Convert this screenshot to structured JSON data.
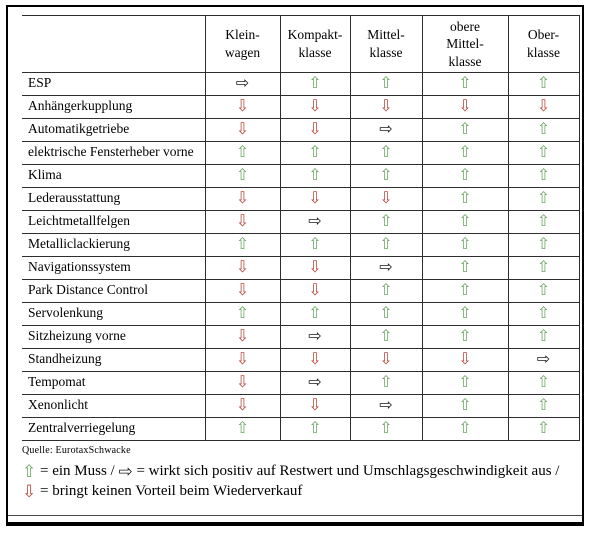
{
  "source": "Quelle: EurotaxSchwacke",
  "arrows": {
    "up": "⇧",
    "down": "⇩",
    "right": "⇨"
  },
  "colors": {
    "up": "#6fa968",
    "down": "#bc4a40",
    "right": "#1a1a1a"
  },
  "legend": {
    "up": "= ein Muss / ",
    "right": "= wirkt sich positiv auf Restwert und Umschlagsgeschwindigkeit aus /",
    "down": "= bringt keinen Vorteil beim Wiederverkauf"
  },
  "table": {
    "columns": [
      "Klein-\nwagen",
      "Kompakt-\nklasse",
      "Mittel-\nklasse",
      "obere\nMittel-\nklasse",
      "Ober-\nklasse"
    ],
    "rows": [
      {
        "label": "ESP",
        "values": [
          "right",
          "up",
          "up",
          "up",
          "up"
        ]
      },
      {
        "label": "Anhängerkupplung",
        "values": [
          "down",
          "down",
          "down",
          "down",
          "down"
        ]
      },
      {
        "label": "Automatikgetriebe",
        "values": [
          "down",
          "down",
          "right",
          "up",
          "up"
        ]
      },
      {
        "label": "elektrische Fensterheber vorne",
        "values": [
          "up",
          "up",
          "up",
          "up",
          "up"
        ]
      },
      {
        "label": "Klima",
        "values": [
          "up",
          "up",
          "up",
          "up",
          "up"
        ]
      },
      {
        "label": "Lederausstattung",
        "values": [
          "down",
          "down",
          "down",
          "up",
          "up"
        ]
      },
      {
        "label": "Leichtmetallfelgen",
        "values": [
          "down",
          "right",
          "up",
          "up",
          "up"
        ]
      },
      {
        "label": "Metalliclackierung",
        "values": [
          "up",
          "up",
          "up",
          "up",
          "up"
        ]
      },
      {
        "label": "Navigationssystem",
        "values": [
          "down",
          "down",
          "right",
          "up",
          "up"
        ]
      },
      {
        "label": "Park Distance Control",
        "values": [
          "down",
          "down",
          "up",
          "up",
          "up"
        ]
      },
      {
        "label": "Servolenkung",
        "values": [
          "up",
          "up",
          "up",
          "up",
          "up"
        ]
      },
      {
        "label": "Sitzheizung vorne",
        "values": [
          "down",
          "right",
          "up",
          "up",
          "up"
        ]
      },
      {
        "label": "Standheizung",
        "values": [
          "down",
          "down",
          "down",
          "down",
          "right"
        ]
      },
      {
        "label": "Tempomat",
        "values": [
          "down",
          "right",
          "up",
          "up",
          "up"
        ]
      },
      {
        "label": "Xenonlicht",
        "values": [
          "down",
          "down",
          "right",
          "up",
          "up"
        ]
      },
      {
        "label": "Zentralverriegelung",
        "values": [
          "up",
          "up",
          "up",
          "up",
          "up"
        ]
      }
    ]
  }
}
